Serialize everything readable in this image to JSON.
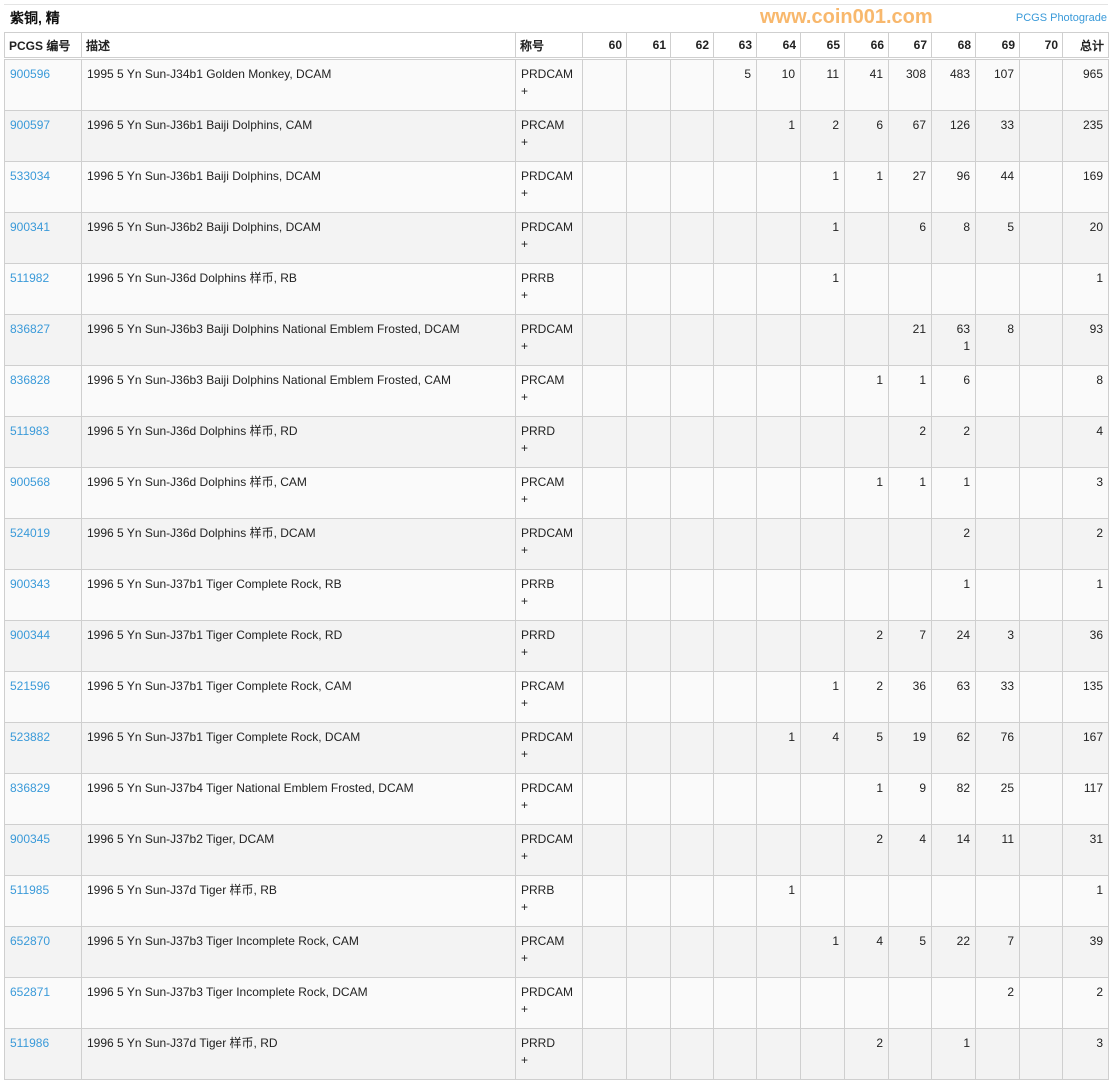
{
  "title": "紫铜, 精",
  "photograde_link": "PCGS Photograde",
  "headers": [
    "PCGS 编号",
    "描述",
    "称号",
    "60",
    "61",
    "62",
    "63",
    "64",
    "65",
    "66",
    "67",
    "68",
    "69",
    "70",
    "总计"
  ],
  "rows": [
    {
      "id": "900596",
      "desc": "1995 5 Yn Sun-J34b1 Golden Monkey, DCAM",
      "desig": "PRDCAM\n+",
      "grades": [
        "",
        "",
        "",
        "5",
        "10",
        "11",
        "41",
        "308",
        "483",
        "107",
        ""
      ],
      "total": "965"
    },
    {
      "id": "900597",
      "desc": "1996 5 Yn Sun-J36b1 Baiji Dolphins, CAM",
      "desig": "PRCAM\n+",
      "grades": [
        "",
        "",
        "",
        "",
        "1",
        "2",
        "6",
        "67",
        "126",
        "33",
        ""
      ],
      "total": "235"
    },
    {
      "id": "533034",
      "desc": "1996 5 Yn Sun-J36b1 Baiji Dolphins, DCAM",
      "desig": "PRDCAM\n+",
      "grades": [
        "",
        "",
        "",
        "",
        "",
        "1",
        "1",
        "27",
        "96",
        "44",
        ""
      ],
      "total": "169"
    },
    {
      "id": "900341",
      "desc": "1996 5 Yn Sun-J36b2 Baiji Dolphins, DCAM",
      "desig": "PRDCAM\n+",
      "grades": [
        "",
        "",
        "",
        "",
        "",
        "1",
        "",
        "6",
        "8",
        "5",
        ""
      ],
      "total": "20"
    },
    {
      "id": "511982",
      "desc": "1996 5 Yn Sun-J36d Dolphins 样币, RB",
      "desig": "PRRB\n+",
      "grades": [
        "",
        "",
        "",
        "",
        "",
        "1",
        "",
        "",
        "",
        "",
        ""
      ],
      "total": "1"
    },
    {
      "id": "836827",
      "desc": "1996 5 Yn Sun-J36b3 Baiji Dolphins National Emblem Frosted, DCAM",
      "desig": "PRDCAM\n+",
      "grades": [
        "",
        "",
        "",
        "",
        "",
        "",
        "",
        "21",
        "63\n1",
        "8",
        ""
      ],
      "total": "93"
    },
    {
      "id": "836828",
      "desc": "1996 5 Yn Sun-J36b3 Baiji Dolphins National Emblem Frosted, CAM",
      "desig": "PRCAM\n+",
      "grades": [
        "",
        "",
        "",
        "",
        "",
        "",
        "1",
        "1",
        "6",
        "",
        ""
      ],
      "total": "8"
    },
    {
      "id": "511983",
      "desc": "1996 5 Yn Sun-J36d Dolphins 样币, RD",
      "desig": "PRRD\n+",
      "grades": [
        "",
        "",
        "",
        "",
        "",
        "",
        "",
        "2",
        "2",
        "",
        ""
      ],
      "total": "4"
    },
    {
      "id": "900568",
      "desc": "1996 5 Yn Sun-J36d Dolphins 样币, CAM",
      "desig": "PRCAM\n+",
      "grades": [
        "",
        "",
        "",
        "",
        "",
        "",
        "1",
        "1",
        "1",
        "",
        ""
      ],
      "total": "3"
    },
    {
      "id": "524019",
      "desc": "1996 5 Yn Sun-J36d Dolphins 样币, DCAM",
      "desig": "PRDCAM\n+",
      "grades": [
        "",
        "",
        "",
        "",
        "",
        "",
        "",
        "",
        "2",
        "",
        ""
      ],
      "total": "2"
    },
    {
      "id": "900343",
      "desc": "1996 5 Yn Sun-J37b1 Tiger Complete Rock, RB",
      "desig": "PRRB\n+",
      "grades": [
        "",
        "",
        "",
        "",
        "",
        "",
        "",
        "",
        "1",
        "",
        ""
      ],
      "total": "1"
    },
    {
      "id": "900344",
      "desc": "1996 5 Yn Sun-J37b1 Tiger Complete Rock, RD",
      "desig": "PRRD\n+",
      "grades": [
        "",
        "",
        "",
        "",
        "",
        "",
        "2",
        "7",
        "24",
        "3",
        ""
      ],
      "total": "36"
    },
    {
      "id": "521596",
      "desc": "1996 5 Yn Sun-J37b1 Tiger Complete Rock, CAM",
      "desig": "PRCAM\n+",
      "grades": [
        "",
        "",
        "",
        "",
        "",
        "1",
        "2",
        "36",
        "63",
        "33",
        ""
      ],
      "total": "135"
    },
    {
      "id": "523882",
      "desc": "1996 5 Yn Sun-J37b1 Tiger Complete Rock, DCAM",
      "desig": "PRDCAM\n+",
      "grades": [
        "",
        "",
        "",
        "",
        "1",
        "4",
        "5",
        "19",
        "62",
        "76",
        ""
      ],
      "total": "167"
    },
    {
      "id": "836829",
      "desc": "1996 5 Yn Sun-J37b4 Tiger National Emblem Frosted, DCAM",
      "desig": "PRDCAM\n+",
      "grades": [
        "",
        "",
        "",
        "",
        "",
        "",
        "1",
        "9",
        "82",
        "25",
        ""
      ],
      "total": "117"
    },
    {
      "id": "900345",
      "desc": "1996 5 Yn Sun-J37b2 Tiger, DCAM",
      "desig": "PRDCAM\n+",
      "grades": [
        "",
        "",
        "",
        "",
        "",
        "",
        "2",
        "4",
        "14",
        "11",
        ""
      ],
      "total": "31"
    },
    {
      "id": "511985",
      "desc": "1996 5 Yn Sun-J37d Tiger 样币, RB",
      "desig": "PRRB\n+",
      "grades": [
        "",
        "",
        "",
        "",
        "1",
        "",
        "",
        "",
        "",
        "",
        ""
      ],
      "total": "1"
    },
    {
      "id": "652870",
      "desc": "1996 5 Yn Sun-J37b3 Tiger Incomplete Rock, CAM",
      "desig": "PRCAM\n+",
      "grades": [
        "",
        "",
        "",
        "",
        "",
        "1",
        "4",
        "5",
        "22",
        "7",
        ""
      ],
      "total": "39"
    },
    {
      "id": "652871",
      "desc": "1996 5 Yn Sun-J37b3 Tiger Incomplete Rock, DCAM",
      "desig": "PRDCAM\n+",
      "grades": [
        "",
        "",
        "",
        "",
        "",
        "",
        "",
        "",
        "",
        "2",
        ""
      ],
      "total": "2"
    },
    {
      "id": "511986",
      "desc": "1996 5 Yn Sun-J37d Tiger 样币, RD",
      "desig": "PRRD\n+",
      "grades": [
        "",
        "",
        "",
        "",
        "",
        "",
        "2",
        "",
        "1",
        "",
        ""
      ],
      "total": "3"
    }
  ],
  "watermark": "www.coin001.com",
  "colors": {
    "link": "#3a9ad9",
    "watermark": "#f5a03c"
  }
}
